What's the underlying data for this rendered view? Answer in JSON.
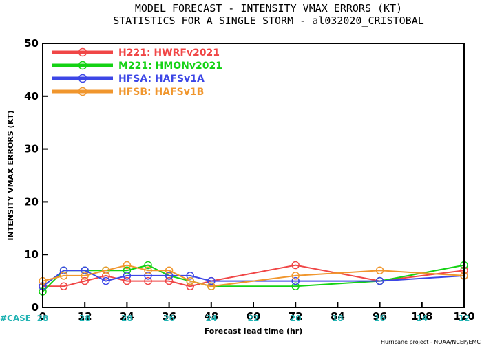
{
  "title_line1": "MODEL FORECAST - INTENSITY VMAX ERRORS (KT)",
  "title_line2": "STATISTICS FOR A SINGLE STORM - al032020_CRISTOBAL",
  "case_label": "#CASE",
  "case_color": "#21b3b3",
  "footer": "Hurricane project - NOAA/NCEP/EMC",
  "chart_data": {
    "type": "line",
    "title": "MODEL FORECAST - INTENSITY VMAX ERRORS (KT)",
    "subtitle": "STATISTICS FOR A SINGLE STORM - al032020_CRISTOBAL",
    "xlabel": "Forecast lead time (hr)",
    "ylabel": "INTENSITY VMAX ERRORS (KT)",
    "xlim": [
      0,
      120
    ],
    "ylim": [
      0,
      50
    ],
    "xticks": [
      0,
      12,
      24,
      36,
      48,
      60,
      72,
      84,
      96,
      108,
      120
    ],
    "yticks": [
      0,
      10,
      20,
      30,
      40,
      50
    ],
    "grid": false,
    "legend_position": "top-left",
    "case_counts": [
      {
        "x": 0,
        "n": 28
      },
      {
        "x": 12,
        "n": 28
      },
      {
        "x": 24,
        "n": 28
      },
      {
        "x": 36,
        "n": 26
      },
      {
        "x": 48,
        "n": 24
      },
      {
        "x": 60,
        "n": 22
      },
      {
        "x": 72,
        "n": 20
      },
      {
        "x": 84,
        "n": 18
      },
      {
        "x": 96,
        "n": 16
      },
      {
        "x": 108,
        "n": 14
      },
      {
        "x": 120,
        "n": 12
      }
    ],
    "series": [
      {
        "name": "H221: HWRFv2021",
        "color": "#f04646",
        "x": [
          0,
          6,
          12,
          18,
          24,
          30,
          36,
          42,
          48,
          72,
          96,
          120
        ],
        "y": [
          4,
          4,
          5,
          6,
          5,
          5,
          5,
          4,
          5,
          8,
          5,
          7
        ]
      },
      {
        "name": "M221: HMONv2021",
        "color": "#14d214",
        "x": [
          0,
          6,
          12,
          18,
          24,
          30,
          36,
          42,
          48,
          72,
          96,
          120
        ],
        "y": [
          3,
          7,
          7,
          7,
          7,
          8,
          6,
          5,
          4,
          4,
          5,
          8
        ]
      },
      {
        "name": "HFSA: HAFSv1A",
        "color": "#3c46e6",
        "x": [
          0,
          6,
          12,
          18,
          24,
          30,
          36,
          42,
          48,
          72,
          96,
          120
        ],
        "y": [
          4,
          7,
          7,
          5,
          6,
          6,
          6,
          6,
          5,
          5,
          5,
          6
        ]
      },
      {
        "name": "HFSB: HAFSv1B",
        "color": "#f0962d",
        "x": [
          0,
          6,
          12,
          18,
          24,
          30,
          36,
          42,
          48,
          72,
          96,
          120
        ],
        "y": [
          5,
          6,
          6,
          7,
          8,
          7,
          7,
          5,
          4,
          6,
          7,
          6
        ]
      }
    ]
  }
}
